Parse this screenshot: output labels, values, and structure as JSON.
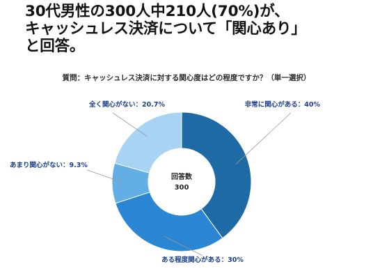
{
  "headline": {
    "line1": "30代男性の300人中210人(70%)が、",
    "line2": "キャッシュレス決済について「関心あり」",
    "line3": "と回答。"
  },
  "chart_data": {
    "type": "pie",
    "title": "質問：キャッシュレス決済に対する関心度はどの程度ですか？（単一選択）",
    "center_label": [
      "回答数",
      "300"
    ],
    "slices": [
      {
        "name": "非常に関心がある",
        "value": 40,
        "label": "非常に関心がある：40%",
        "color": "#1e6aa4"
      },
      {
        "name": "ある程度関心がある",
        "value": 30,
        "label": "ある程度関心がある：30%",
        "color": "#2a86d3"
      },
      {
        "name": "あまり関心がない",
        "value": 9.3,
        "label": "あまり関心がない：9.3%",
        "color": "#64aee6"
      },
      {
        "name": "全く関心がない",
        "value": 20.7,
        "label": "全く関心がない：20.7%",
        "color": "#a8d3f2"
      }
    ]
  }
}
